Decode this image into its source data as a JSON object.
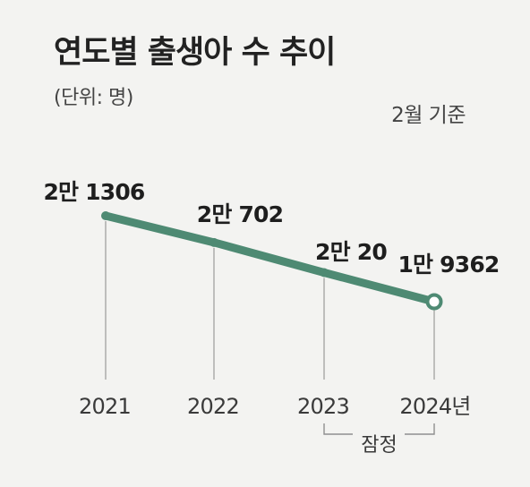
{
  "title": "연도별 출생아 수 추이",
  "unit_label": "(단위: 명)",
  "basis_label": "2월 기준",
  "chart_data": {
    "type": "line",
    "title": "연도별 출생아 수 추이",
    "unit": "(단위: 명)",
    "note": "2월 기준",
    "categories": [
      "2021",
      "2022",
      "2023",
      "2024년"
    ],
    "values": [
      21306,
      20702,
      20020,
      19362
    ],
    "value_labels": [
      "2만 1306",
      "2만 702",
      "2만 20",
      "1만 9362"
    ],
    "provisional_label": "잠정",
    "provisional_categories": [
      "2023",
      "2024년"
    ],
    "line_color": "#4e8a73",
    "grid": false
  }
}
